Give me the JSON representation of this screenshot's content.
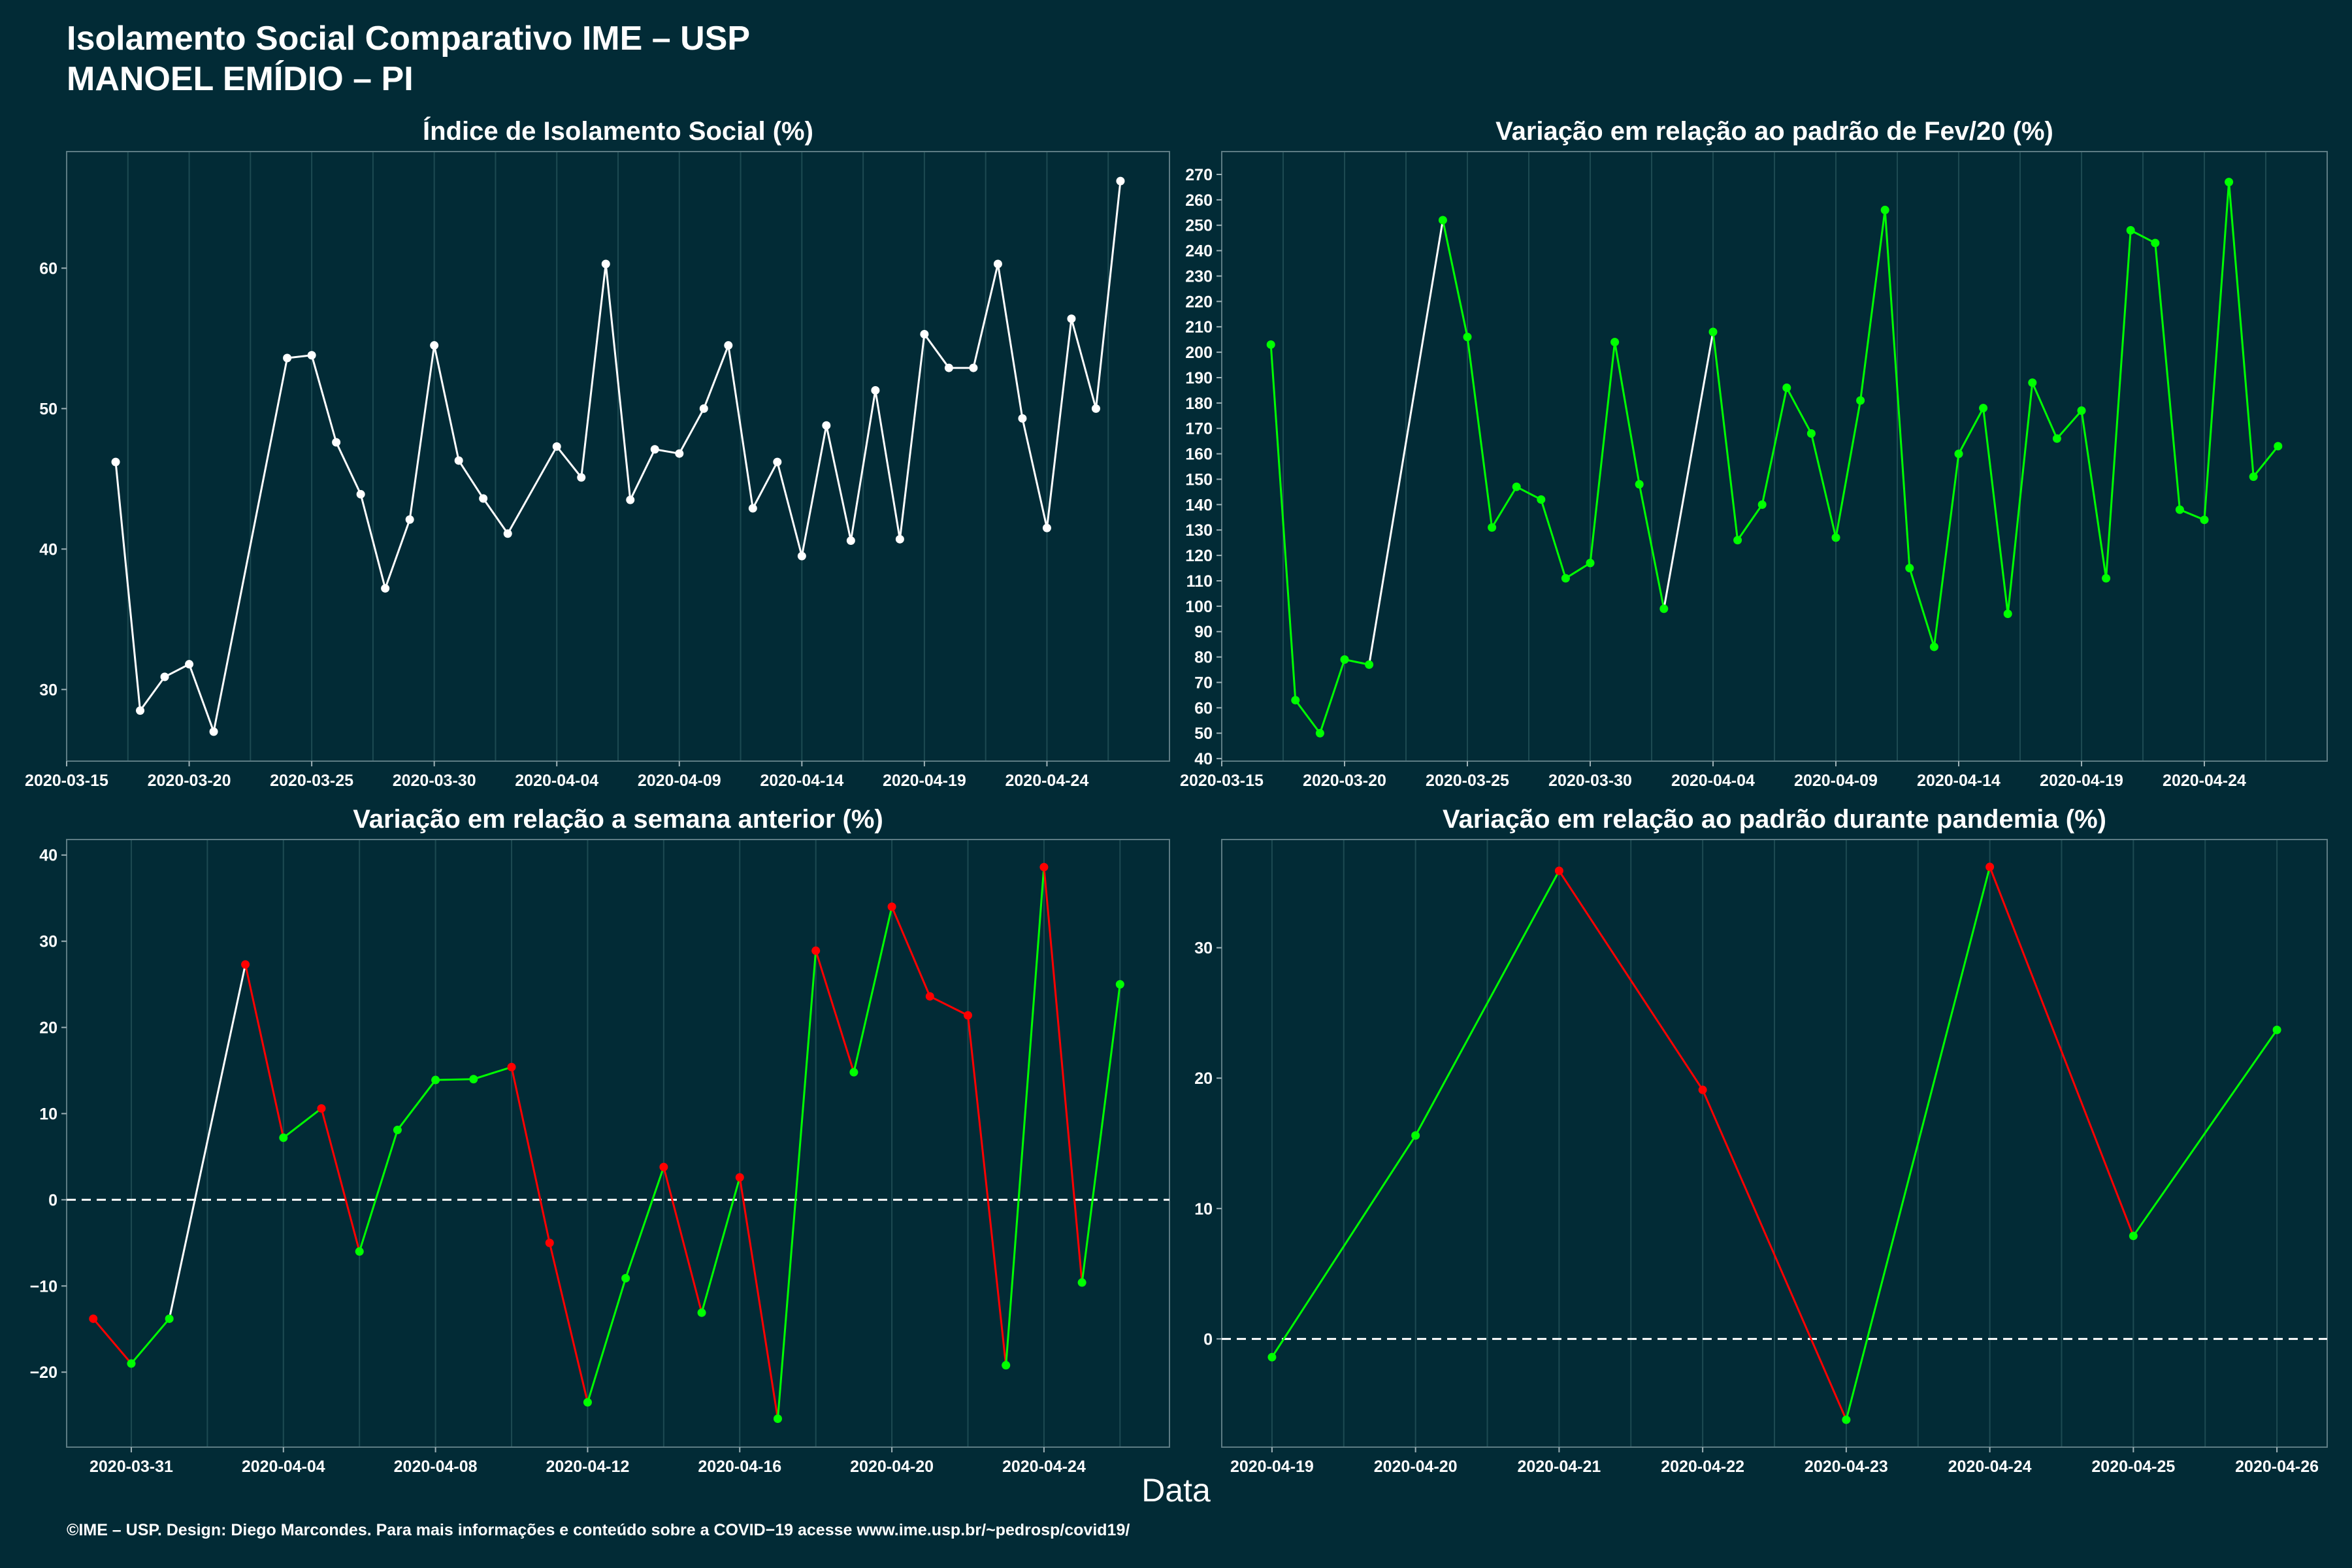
{
  "title": {
    "line1": "Isolamento Social Comparativo IME – USP",
    "line2": "MANOEL EMÍDIO – PI"
  },
  "xlabel": "Data",
  "footer": "©IME – USP. Design: Diego Marcondes. Para mais informações e conteúdo sobre a COVID−19 acesse www.ime.usp.br/~pedrosp/covid19/",
  "colors": {
    "background": "#022b36",
    "neutral": "#ffffff",
    "increase": "#00ff00",
    "decrease": "#ff0000",
    "gridline": "#1d4a52"
  },
  "chart_data": [
    {
      "id": "p1",
      "type": "line",
      "title": "Índice de Isolamento Social (%)",
      "color_mode": "white",
      "x": [
        "2020-03-17",
        "2020-03-18",
        "2020-03-19",
        "2020-03-20",
        "2020-03-21",
        "2020-03-24",
        "2020-03-25",
        "2020-03-26",
        "2020-03-27",
        "2020-03-28",
        "2020-03-29",
        "2020-03-30",
        "2020-03-31",
        "2020-04-01",
        "2020-04-02",
        "2020-04-04",
        "2020-04-05",
        "2020-04-06",
        "2020-04-07",
        "2020-04-08",
        "2020-04-09",
        "2020-04-10",
        "2020-04-11",
        "2020-04-12",
        "2020-04-13",
        "2020-04-14",
        "2020-04-15",
        "2020-04-16",
        "2020-04-17",
        "2020-04-18",
        "2020-04-19",
        "2020-04-20",
        "2020-04-21",
        "2020-04-22",
        "2020-04-23",
        "2020-04-24",
        "2020-04-25",
        "2020-04-26",
        "2020-04-27"
      ],
      "values": [
        46.2,
        28.5,
        30.9,
        31.8,
        27.0,
        53.6,
        53.8,
        47.6,
        43.9,
        37.2,
        42.1,
        54.5,
        46.3,
        43.6,
        41.1,
        47.3,
        45.1,
        60.3,
        43.5,
        47.1,
        46.8,
        50.0,
        54.5,
        42.9,
        46.2,
        39.5,
        48.8,
        40.6,
        51.3,
        40.7,
        55.3,
        52.9,
        52.9,
        60.3,
        49.3,
        41.5,
        56.4,
        50.0,
        66.2
      ],
      "x_ticks": [
        "2020-03-15",
        "2020-03-20",
        "2020-03-25",
        "2020-03-30",
        "2020-04-04",
        "2020-04-09",
        "2020-04-14",
        "2020-04-19",
        "2020-04-24"
      ],
      "y_ticks": [
        30,
        40,
        50,
        60
      ],
      "xlim": [
        "2020-03-15",
        "2020-04-29"
      ],
      "ylim": [
        24.9,
        68.3
      ]
    },
    {
      "id": "p2",
      "type": "line",
      "title": "Variação em relação ao padrão de Fev/20 (%)",
      "color_mode": "green-except-gaps",
      "x": [
        "2020-03-17",
        "2020-03-18",
        "2020-03-19",
        "2020-03-20",
        "2020-03-21",
        "2020-03-24",
        "2020-03-25",
        "2020-03-26",
        "2020-03-27",
        "2020-03-28",
        "2020-03-29",
        "2020-03-30",
        "2020-03-31",
        "2020-04-01",
        "2020-04-02",
        "2020-04-04",
        "2020-04-05",
        "2020-04-06",
        "2020-04-07",
        "2020-04-08",
        "2020-04-09",
        "2020-04-10",
        "2020-04-11",
        "2020-04-12",
        "2020-04-13",
        "2020-04-14",
        "2020-04-15",
        "2020-04-16",
        "2020-04-17",
        "2020-04-18",
        "2020-04-19",
        "2020-04-20",
        "2020-04-21",
        "2020-04-22",
        "2020-04-23",
        "2020-04-24",
        "2020-04-25",
        "2020-04-26",
        "2020-04-27"
      ],
      "values": [
        203,
        63,
        50,
        79,
        77,
        252,
        206,
        131,
        147,
        142,
        111,
        117,
        204,
        148,
        99,
        208,
        126,
        140,
        186,
        168,
        127,
        181,
        256,
        115,
        84,
        160,
        178,
        97,
        188,
        166,
        177,
        111,
        248,
        243,
        138,
        134,
        267,
        151,
        163
      ],
      "x_ticks": [
        "2020-03-15",
        "2020-03-20",
        "2020-03-25",
        "2020-03-30",
        "2020-04-04",
        "2020-04-09",
        "2020-04-14",
        "2020-04-19",
        "2020-04-24"
      ],
      "y_ticks": [
        40,
        50,
        60,
        70,
        80,
        90,
        100,
        110,
        120,
        130,
        140,
        150,
        160,
        170,
        180,
        190,
        200,
        210,
        220,
        230,
        240,
        250,
        260,
        270
      ],
      "xlim": [
        "2020-03-15",
        "2020-04-29"
      ],
      "ylim": [
        39,
        279
      ]
    },
    {
      "id": "p3",
      "type": "line",
      "title": "Variação em relação a semana anterior (%)",
      "color_mode": "trend",
      "x": [
        "2020-03-30",
        "2020-03-31",
        "2020-04-01",
        "2020-04-03",
        "2020-04-04",
        "2020-04-05",
        "2020-04-06",
        "2020-04-07",
        "2020-04-08",
        "2020-04-09",
        "2020-04-10",
        "2020-04-11",
        "2020-04-12",
        "2020-04-13",
        "2020-04-14",
        "2020-04-15",
        "2020-04-16",
        "2020-04-17",
        "2020-04-18",
        "2020-04-19",
        "2020-04-20",
        "2020-04-21",
        "2020-04-22",
        "2020-04-23",
        "2020-04-24",
        "2020-04-25",
        "2020-04-26"
      ],
      "values": [
        -13.8,
        -19.0,
        -13.8,
        27.3,
        7.2,
        10.6,
        -6.0,
        8.1,
        13.9,
        14.0,
        15.4,
        -5.0,
        -23.5,
        -9.1,
        3.8,
        -13.1,
        2.6,
        -25.4,
        28.9,
        14.8,
        34.0,
        23.6,
        21.4,
        -19.2,
        38.6,
        -9.6,
        25.0
      ],
      "x_ticks": [
        "2020-03-31",
        "2020-04-04",
        "2020-04-08",
        "2020-04-12",
        "2020-04-16",
        "2020-04-20",
        "2020-04-24"
      ],
      "y_ticks": [
        -20,
        -10,
        0,
        10,
        20,
        30,
        40
      ],
      "xlim": [
        "2020-03-29.3",
        "2020-04-27.3"
      ],
      "ylim": [
        -28.7,
        41.8
      ],
      "reference_line": 0
    },
    {
      "id": "p4",
      "type": "line",
      "title": "Variação em relação ao padrão durante pandemia (%)",
      "color_mode": "trend",
      "x": [
        "2020-04-19",
        "2020-04-20",
        "2020-04-21",
        "2020-04-22",
        "2020-04-23",
        "2020-04-24",
        "2020-04-25",
        "2020-04-26"
      ],
      "values": [
        -1.4,
        15.6,
        35.9,
        19.1,
        -6.2,
        36.2,
        7.9,
        23.7
      ],
      "x_ticks": [
        "2020-04-19",
        "2020-04-20",
        "2020-04-21",
        "2020-04-22",
        "2020-04-23",
        "2020-04-24",
        "2020-04-25",
        "2020-04-26"
      ],
      "y_ticks": [
        0,
        10,
        20,
        30
      ],
      "xlim": [
        "2020-04-18.65",
        "2020-04-26.35"
      ],
      "ylim": [
        -8.3,
        38.3
      ],
      "reference_line": 0
    }
  ]
}
